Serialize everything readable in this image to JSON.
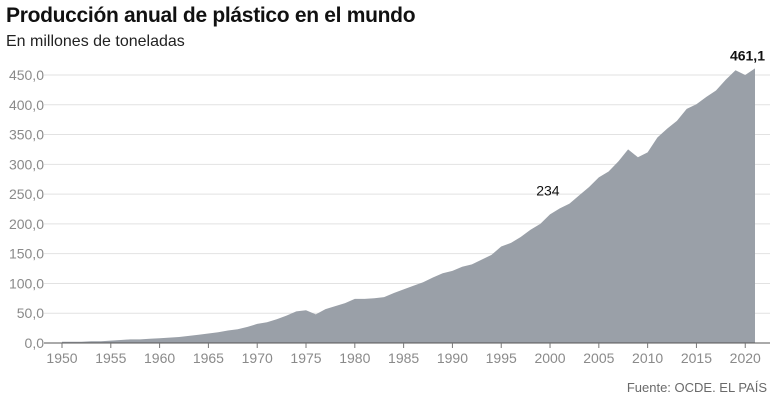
{
  "chart_data": {
    "type": "area",
    "title": "Producción anual de plástico en el mundo",
    "subtitle": "En millones de toneladas",
    "source": "Fuente: OCDE. EL PAÍS",
    "ylim": [
      0,
      450
    ],
    "yticks": [
      "0,0",
      "50,0",
      "100,0",
      "150,0",
      "200,0",
      "250,0",
      "300,0",
      "350,0",
      "400,0",
      "450,0"
    ],
    "xticks": [
      1950,
      1955,
      1960,
      1965,
      1970,
      1975,
      1980,
      1985,
      1990,
      1995,
      2000,
      2005,
      2010,
      2015,
      2020
    ],
    "xlim": [
      1950,
      2021
    ],
    "grid": true,
    "fill_color": "#9aa0a8",
    "x": [
      1950,
      1951,
      1952,
      1953,
      1954,
      1955,
      1956,
      1957,
      1958,
      1959,
      1960,
      1961,
      1962,
      1963,
      1964,
      1965,
      1966,
      1967,
      1968,
      1969,
      1970,
      1971,
      1972,
      1973,
      1974,
      1975,
      1976,
      1977,
      1978,
      1979,
      1980,
      1981,
      1982,
      1983,
      1984,
      1985,
      1986,
      1987,
      1988,
      1989,
      1990,
      1991,
      1992,
      1993,
      1994,
      1995,
      1996,
      1997,
      1998,
      1999,
      2000,
      2001,
      2002,
      2003,
      2004,
      2005,
      2006,
      2007,
      2008,
      2009,
      2010,
      2011,
      2012,
      2013,
      2014,
      2015,
      2016,
      2017,
      2018,
      2019,
      2020,
      2021
    ],
    "values": [
      2,
      2,
      2,
      3,
      3,
      4,
      5,
      6,
      6,
      7,
      8,
      9,
      10,
      12,
      14,
      16,
      18,
      21,
      23,
      27,
      32,
      35,
      40,
      46,
      53,
      55,
      48,
      57,
      62,
      67,
      74,
      74,
      75,
      77,
      84,
      90,
      96,
      102,
      110,
      117,
      121,
      128,
      132,
      140,
      148,
      162,
      168,
      178,
      190,
      200,
      216,
      226,
      234,
      248,
      262,
      278,
      288,
      305,
      325,
      312,
      320,
      345,
      360,
      373,
      393,
      401,
      413,
      424,
      442,
      458,
      450,
      461.1
    ],
    "annotations": [
      {
        "x": 2002,
        "value_label": "234"
      },
      {
        "x": 2021,
        "value_label": "461,1"
      }
    ]
  }
}
